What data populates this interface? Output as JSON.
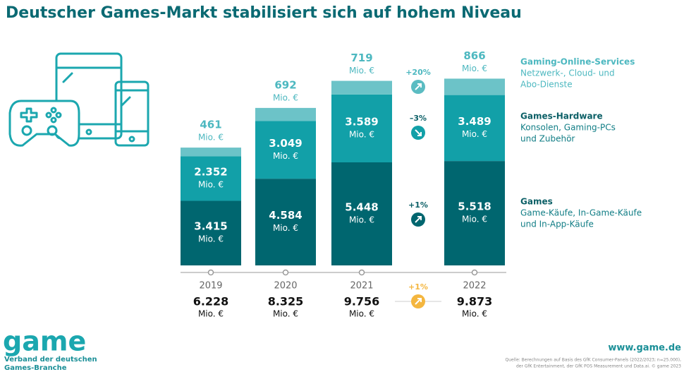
{
  "chart_data": {
    "type": "bar",
    "stacked": true,
    "title": "Deutscher Games-Markt stabilisiert sich auf hohem Niveau",
    "unit": "Mio. €",
    "categories": [
      "2019",
      "2020",
      "2021",
      "2022"
    ],
    "series": [
      {
        "name": "Games",
        "description": [
          "Game-Käufe, In-Game-Käufe",
          "und In-App-Käufe"
        ],
        "color": "#00666f",
        "values": [
          3415,
          4584,
          5448,
          5518
        ],
        "value_labels": [
          "3.415",
          "4.584",
          "5.448",
          "5.518"
        ],
        "change": "+1%"
      },
      {
        "name": "Games-Hardware",
        "description": [
          "Konsolen, Gaming-PCs",
          "und Zubehör"
        ],
        "color": "#12a0a8",
        "values": [
          2352,
          3049,
          3589,
          3489
        ],
        "value_labels": [
          "2.352",
          "3.049",
          "3.589",
          "3.489"
        ],
        "change": "–3%"
      },
      {
        "name": "Gaming-Online-Services",
        "description": [
          "Netzwerk-, Cloud- und",
          "Abo-Dienste"
        ],
        "color": "#6cc3c8",
        "values": [
          461,
          692,
          719,
          866
        ],
        "value_labels": [
          "461",
          "692",
          "719",
          "866"
        ],
        "change": "+20%"
      }
    ],
    "totals": {
      "values": [
        6228,
        8325,
        9756,
        9873
      ],
      "value_labels": [
        "6.228",
        "8.325",
        "9.756",
        "9.873"
      ],
      "change": "+1%",
      "color": "#f4b63f"
    },
    "footer": {
      "logo": "game",
      "organisation": [
        "Verband der deutschen",
        "Games-Branche"
      ],
      "website": "www.game.de",
      "source": [
        "Quelle: Berechnungen auf Basis des GfK Consumer-Panels (2022/2023; n=25.000),",
        "der GfK Entertainment, der GfK POS Measurement und Data.ai. © game 2023"
      ]
    }
  }
}
